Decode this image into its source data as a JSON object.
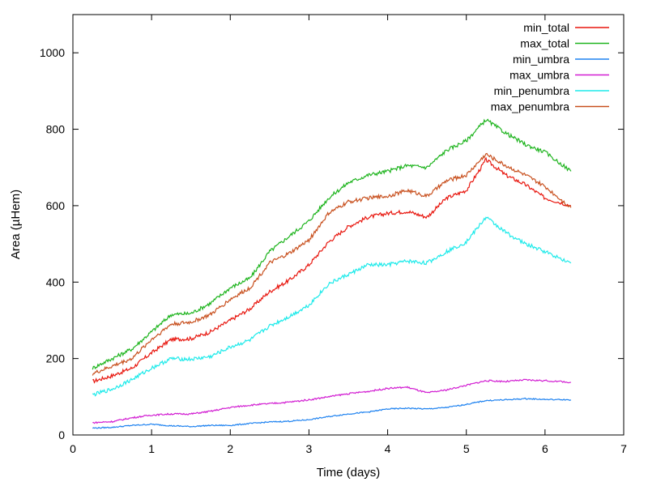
{
  "chart_data": {
    "type": "line",
    "xlabel": "Time (days)",
    "ylabel": "Area (µHem)",
    "xlim": [
      0,
      7
    ],
    "ylim": [
      0,
      1100
    ],
    "xticks": [
      0,
      1,
      2,
      3,
      4,
      5,
      6,
      7
    ],
    "yticks": [
      0,
      200,
      400,
      600,
      800,
      1000
    ],
    "grid": false,
    "legend_position": "top-right",
    "series": [
      {
        "name": "min_total",
        "color": "#e8170f",
        "points": [
          [
            0.25,
            140
          ],
          [
            0.5,
            155
          ],
          [
            0.75,
            175
          ],
          [
            1.0,
            215
          ],
          [
            1.25,
            250
          ],
          [
            1.5,
            252
          ],
          [
            1.75,
            270
          ],
          [
            2.0,
            300
          ],
          [
            2.25,
            330
          ],
          [
            2.5,
            375
          ],
          [
            2.75,
            405
          ],
          [
            3.0,
            445
          ],
          [
            3.25,
            505
          ],
          [
            3.5,
            545
          ],
          [
            3.75,
            570
          ],
          [
            4.0,
            580
          ],
          [
            4.25,
            585
          ],
          [
            4.5,
            570
          ],
          [
            4.75,
            620
          ],
          [
            5.0,
            640
          ],
          [
            5.25,
            720
          ],
          [
            5.5,
            680
          ],
          [
            5.75,
            655
          ],
          [
            6.0,
            620
          ],
          [
            6.33,
            600
          ]
        ]
      },
      {
        "name": "max_total",
        "color": "#1eb41e",
        "points": [
          [
            0.25,
            175
          ],
          [
            0.5,
            200
          ],
          [
            0.75,
            225
          ],
          [
            1.0,
            270
          ],
          [
            1.25,
            315
          ],
          [
            1.5,
            318
          ],
          [
            1.75,
            345
          ],
          [
            2.0,
            385
          ],
          [
            2.25,
            410
          ],
          [
            2.5,
            480
          ],
          [
            2.75,
            520
          ],
          [
            3.0,
            560
          ],
          [
            3.25,
            620
          ],
          [
            3.5,
            660
          ],
          [
            3.75,
            680
          ],
          [
            4.0,
            690
          ],
          [
            4.25,
            705
          ],
          [
            4.5,
            700
          ],
          [
            4.75,
            745
          ],
          [
            5.0,
            770
          ],
          [
            5.25,
            825
          ],
          [
            5.5,
            790
          ],
          [
            5.75,
            760
          ],
          [
            6.0,
            740
          ],
          [
            6.33,
            690
          ]
        ]
      },
      {
        "name": "min_umbra",
        "color": "#1e82f0",
        "points": [
          [
            0.25,
            18
          ],
          [
            0.5,
            20
          ],
          [
            0.75,
            25
          ],
          [
            1.0,
            28
          ],
          [
            1.25,
            24
          ],
          [
            1.5,
            22
          ],
          [
            1.75,
            25
          ],
          [
            2.0,
            25
          ],
          [
            2.25,
            30
          ],
          [
            2.5,
            34
          ],
          [
            2.75,
            36
          ],
          [
            3.0,
            40
          ],
          [
            3.25,
            48
          ],
          [
            3.5,
            55
          ],
          [
            3.75,
            60
          ],
          [
            4.0,
            68
          ],
          [
            4.25,
            70
          ],
          [
            4.5,
            68
          ],
          [
            4.75,
            72
          ],
          [
            5.0,
            80
          ],
          [
            5.25,
            90
          ],
          [
            5.5,
            92
          ],
          [
            5.75,
            95
          ],
          [
            6.0,
            93
          ],
          [
            6.33,
            92
          ]
        ]
      },
      {
        "name": "max_umbra",
        "color": "#d21ed2",
        "points": [
          [
            0.25,
            32
          ],
          [
            0.5,
            35
          ],
          [
            0.75,
            45
          ],
          [
            1.0,
            52
          ],
          [
            1.25,
            55
          ],
          [
            1.5,
            55
          ],
          [
            1.75,
            62
          ],
          [
            2.0,
            72
          ],
          [
            2.25,
            78
          ],
          [
            2.5,
            82
          ],
          [
            2.75,
            86
          ],
          [
            3.0,
            92
          ],
          [
            3.25,
            100
          ],
          [
            3.5,
            108
          ],
          [
            3.75,
            114
          ],
          [
            4.0,
            122
          ],
          [
            4.25,
            125
          ],
          [
            4.5,
            110
          ],
          [
            4.75,
            118
          ],
          [
            5.0,
            130
          ],
          [
            5.25,
            142
          ],
          [
            5.5,
            140
          ],
          [
            5.75,
            144
          ],
          [
            6.0,
            142
          ],
          [
            6.33,
            138
          ]
        ]
      },
      {
        "name": "min_penumbra",
        "color": "#1eeaea",
        "points": [
          [
            0.25,
            105
          ],
          [
            0.5,
            120
          ],
          [
            0.75,
            145
          ],
          [
            1.0,
            175
          ],
          [
            1.25,
            200
          ],
          [
            1.5,
            198
          ],
          [
            1.75,
            205
          ],
          [
            2.0,
            230
          ],
          [
            2.25,
            248
          ],
          [
            2.5,
            285
          ],
          [
            2.75,
            310
          ],
          [
            3.0,
            340
          ],
          [
            3.25,
            395
          ],
          [
            3.5,
            420
          ],
          [
            3.75,
            445
          ],
          [
            4.0,
            445
          ],
          [
            4.25,
            455
          ],
          [
            4.5,
            450
          ],
          [
            4.75,
            480
          ],
          [
            5.0,
            505
          ],
          [
            5.25,
            570
          ],
          [
            5.5,
            530
          ],
          [
            5.75,
            500
          ],
          [
            6.0,
            480
          ],
          [
            6.33,
            450
          ]
        ]
      },
      {
        "name": "max_penumbra",
        "color": "#c8501e",
        "points": [
          [
            0.25,
            160
          ],
          [
            0.5,
            180
          ],
          [
            0.75,
            200
          ],
          [
            1.0,
            250
          ],
          [
            1.25,
            290
          ],
          [
            1.5,
            295
          ],
          [
            1.75,
            315
          ],
          [
            2.0,
            355
          ],
          [
            2.25,
            385
          ],
          [
            2.5,
            450
          ],
          [
            2.75,
            475
          ],
          [
            3.0,
            510
          ],
          [
            3.25,
            580
          ],
          [
            3.5,
            610
          ],
          [
            3.75,
            620
          ],
          [
            4.0,
            625
          ],
          [
            4.25,
            640
          ],
          [
            4.5,
            625
          ],
          [
            4.75,
            665
          ],
          [
            5.0,
            680
          ],
          [
            5.25,
            735
          ],
          [
            5.5,
            705
          ],
          [
            5.75,
            680
          ],
          [
            6.0,
            650
          ],
          [
            6.33,
            595
          ]
        ]
      }
    ]
  }
}
